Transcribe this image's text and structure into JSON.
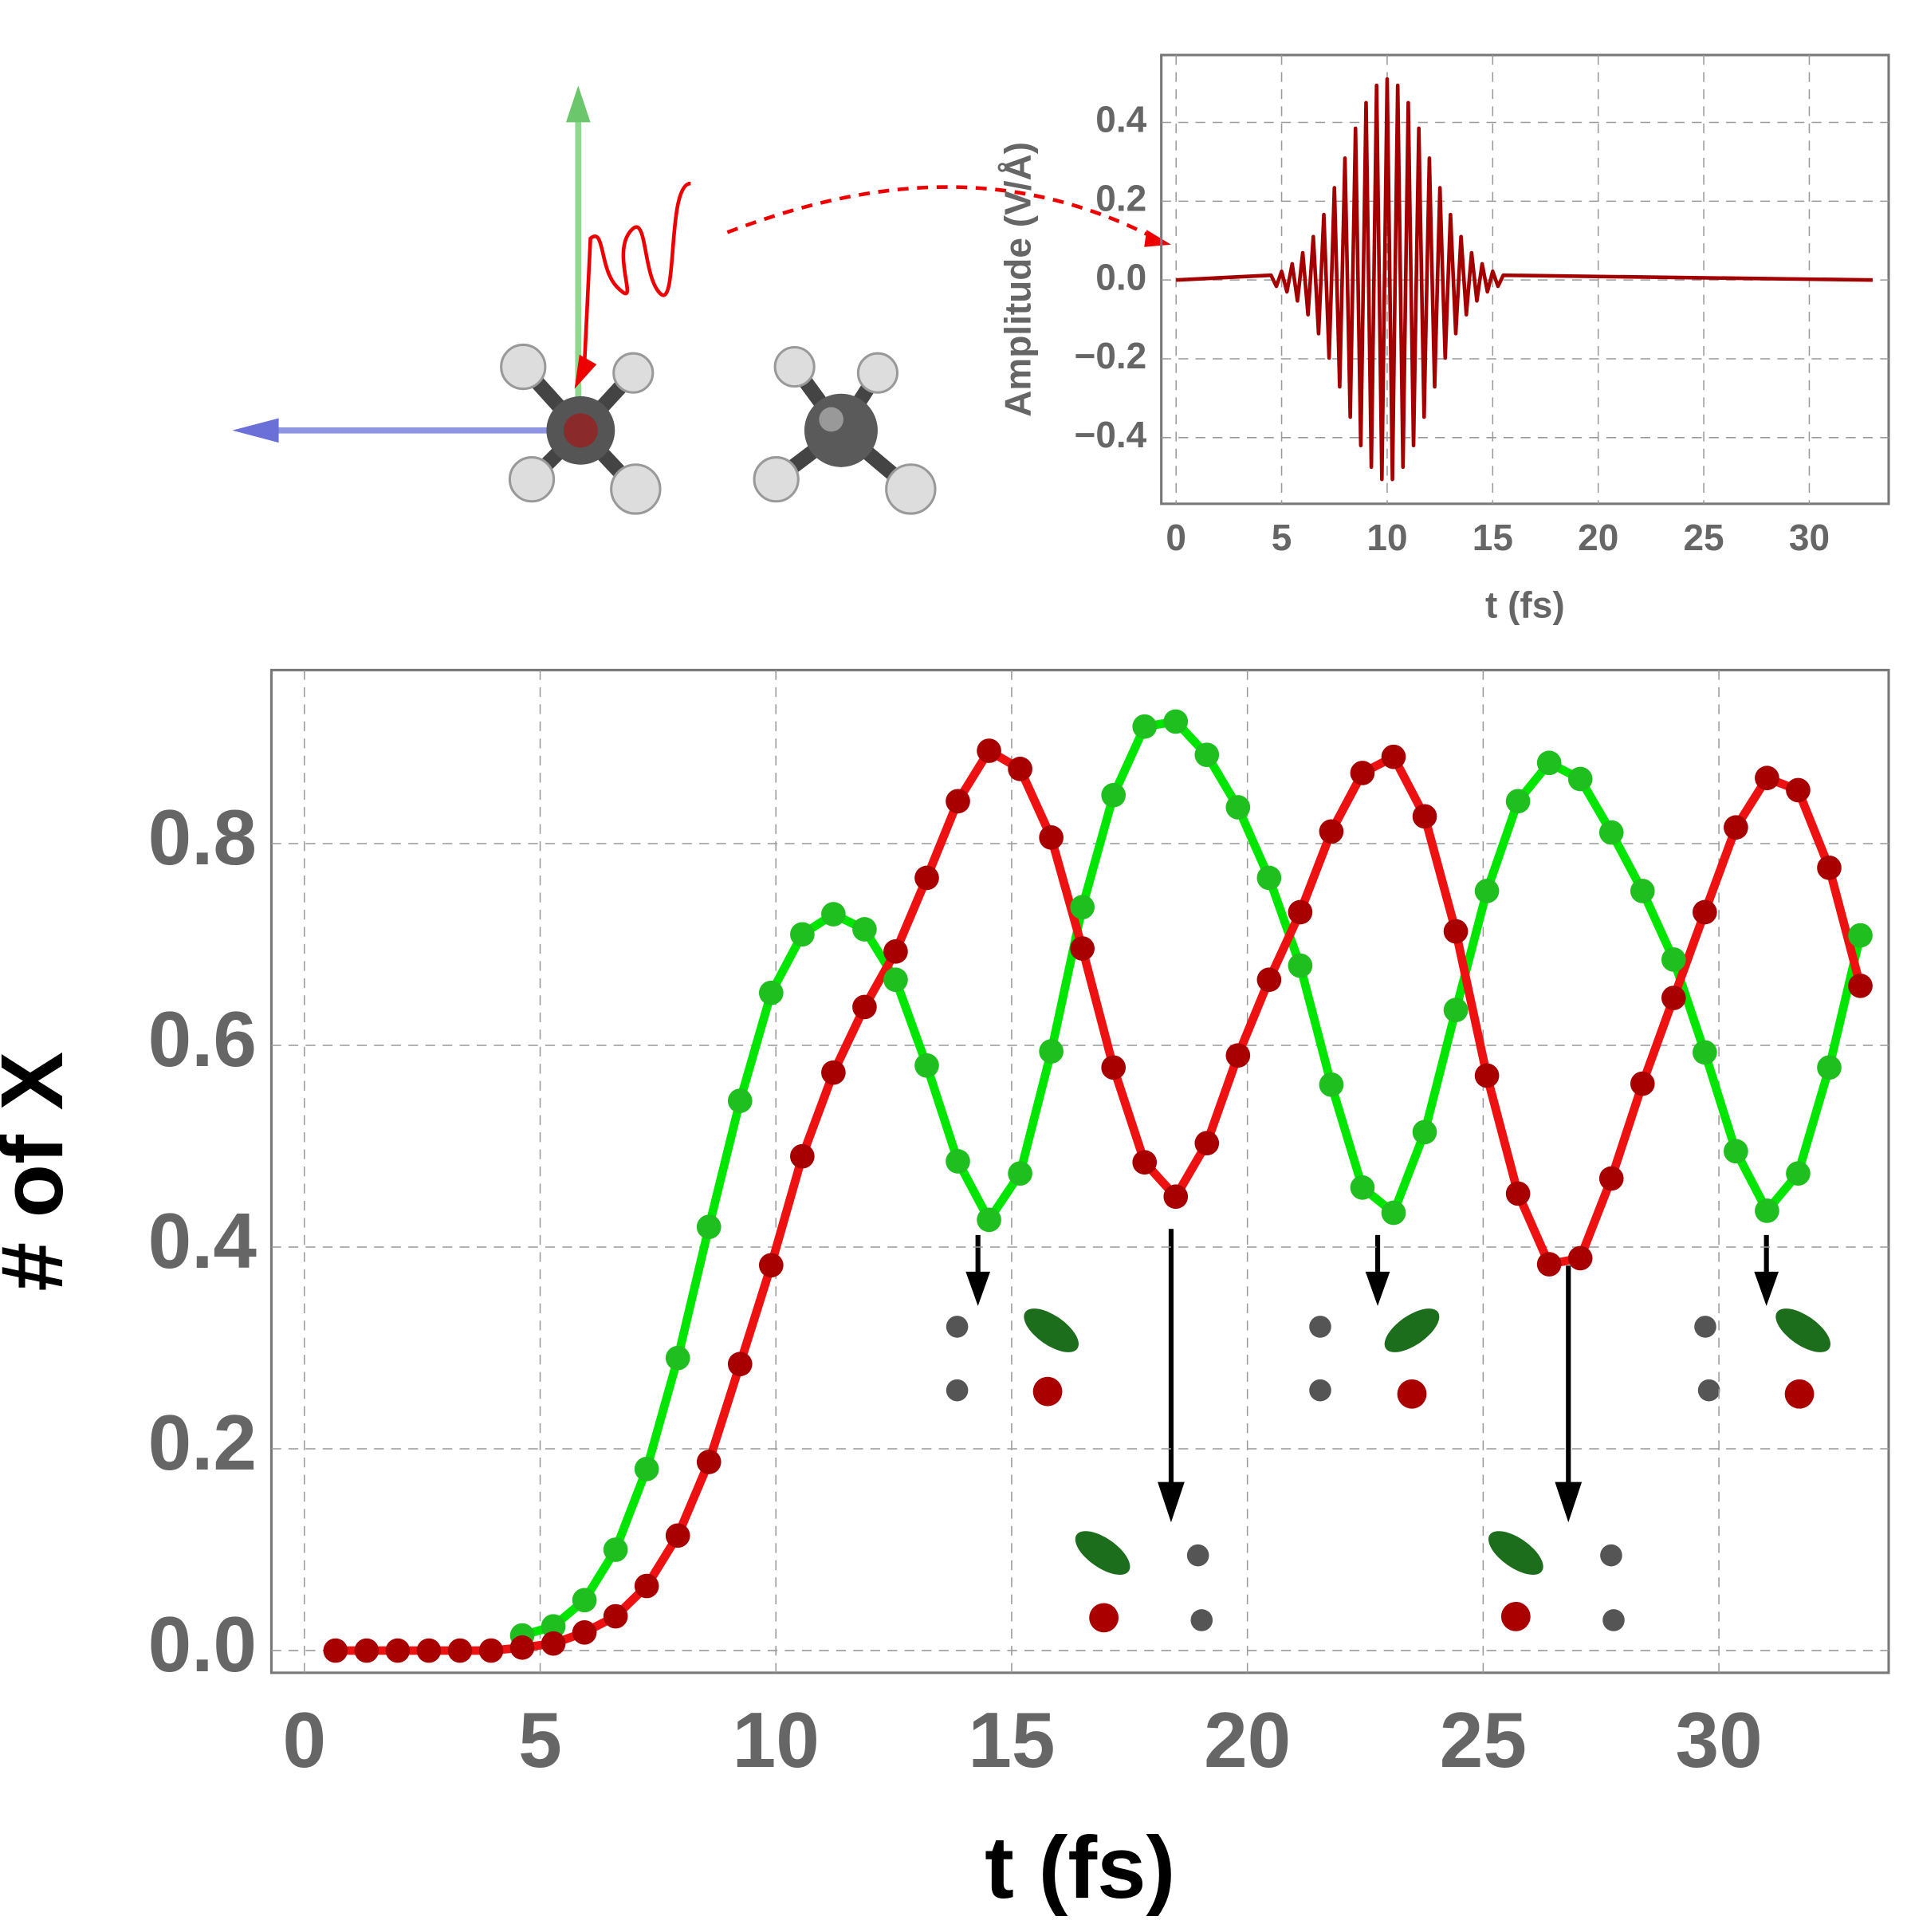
{
  "chart_data": [
    {
      "type": "line",
      "x_label": "t (fs)",
      "y_label": "Amplitude (V/Å)",
      "x": [
        0,
        4.5,
        4.75,
        5,
        5.25,
        5.5,
        5.75,
        6,
        6.25,
        6.5,
        6.75,
        7,
        7.25,
        7.5,
        7.75,
        8,
        8.25,
        8.5,
        8.75,
        9,
        9.25,
        9.5,
        9.75,
        10,
        10.25,
        10.5,
        10.75,
        11,
        11.25,
        11.5,
        11.75,
        12,
        12.25,
        12.5,
        12.75,
        13,
        13.25,
        13.5,
        13.75,
        14,
        14.25,
        14.5,
        14.75,
        15,
        15.25,
        15.5,
        33
      ],
      "values": [
        0,
        0.012,
        -0.016,
        0.022,
        -0.03,
        0.041,
        -0.053,
        0.069,
        -0.088,
        0.11,
        -0.136,
        0.166,
        -0.198,
        0.234,
        -0.271,
        0.309,
        -0.348,
        0.385,
        -0.42,
        0.45,
        -0.475,
        0.494,
        -0.506,
        0.51,
        -0.506,
        0.494,
        -0.475,
        0.45,
        -0.42,
        0.385,
        -0.348,
        0.309,
        -0.271,
        0.234,
        -0.198,
        0.166,
        -0.136,
        0.11,
        -0.088,
        0.069,
        -0.053,
        0.041,
        -0.03,
        0.022,
        -0.016,
        0.012,
        0
      ],
      "color": "#a50000",
      "xlim": [
        -0.7,
        33.76
      ],
      "ylim": [
        -0.568,
        0.571
      ],
      "xticks": [
        0,
        5,
        10,
        15,
        20,
        25,
        30
      ],
      "yticks": [
        {
          "value": -0.4,
          "label": "−0.4"
        },
        {
          "value": -0.2,
          "label": "−0.2"
        },
        {
          "value": 0,
          "label": "0.0"
        },
        0.2,
        0.4
      ],
      "grid": true
    },
    {
      "type": "line",
      "x_label": "t (fs)",
      "y_label": "# of X",
      "x": [
        0.66,
        1.32,
        1.98,
        2.64,
        3.3,
        3.96,
        4.62,
        5.28,
        5.94,
        6.6,
        7.26,
        7.92,
        8.58,
        9.24,
        9.9,
        10.56,
        11.22,
        11.88,
        12.54,
        13.2,
        13.86,
        14.52,
        15.18,
        15.84,
        16.5,
        17.16,
        17.82,
        18.48,
        19.14,
        19.8,
        20.46,
        21.12,
        21.78,
        22.44,
        23.1,
        23.76,
        24.42,
        25.08,
        25.74,
        26.4,
        27.06,
        27.72,
        28.38,
        29.04,
        29.7,
        30.36,
        31.02,
        31.68,
        32.34,
        33.0
      ],
      "series": [
        {
          "color": "#00e600",
          "marker_color": "#1fbf1f",
          "values": [
            null,
            null,
            null,
            null,
            null,
            null,
            0.015,
            0.024,
            0.05,
            0.1,
            0.18,
            0.29,
            0.42,
            0.545,
            0.652,
            0.71,
            0.73,
            0.715,
            0.665,
            0.58,
            0.485,
            0.427,
            0.473,
            0.594,
            0.737,
            0.848,
            0.916,
            0.921,
            0.888,
            0.836,
            0.766,
            0.679,
            0.561,
            0.459,
            0.434,
            0.514,
            0.635,
            0.753,
            0.842,
            0.88,
            0.864,
            0.811,
            0.753,
            0.685,
            0.593,
            0.495,
            0.436,
            0.473,
            0.578,
            0.709
          ]
        },
        {
          "color": "#ee1111",
          "marker_color": "#a80000",
          "values": [
            0,
            0,
            0,
            0,
            0,
            0,
            0.003,
            0.007,
            0.018,
            0.034,
            0.064,
            0.114,
            0.187,
            0.284,
            0.382,
            0.49,
            0.573,
            0.638,
            0.693,
            0.766,
            0.842,
            0.892,
            0.874,
            0.806,
            0.696,
            0.578,
            0.484,
            0.45,
            0.503,
            0.59,
            0.665,
            0.732,
            0.812,
            0.87,
            0.886,
            0.827,
            0.713,
            0.57,
            0.453,
            0.383,
            0.389,
            0.468,
            0.562,
            0.647,
            0.732,
            0.816,
            0.865,
            0.853,
            0.776,
            0.659
          ]
        }
      ],
      "xlim": [
        -0.7,
        33.6
      ],
      "ylim": [
        -0.022,
        0.972
      ],
      "xticks": [
        0,
        5,
        10,
        15,
        20,
        25,
        30
      ],
      "yticks": [
        {
          "value": 0,
          "label": "0.0"
        },
        0.2,
        0.4,
        0.6,
        0.8
      ],
      "grid": true
    }
  ]
}
